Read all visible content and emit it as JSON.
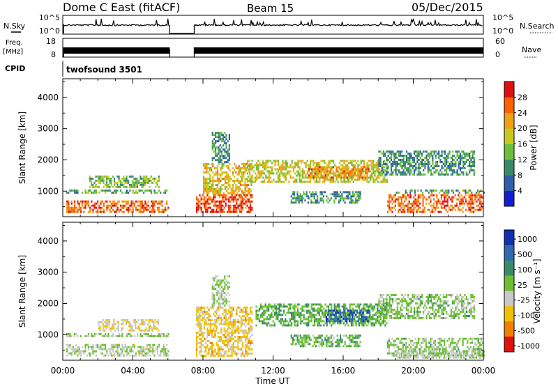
{
  "header": {
    "station": "Dome C East (fitACF)",
    "beam": "Beam 15",
    "date": "05/Dec/2015"
  },
  "nsky_panel": {
    "left_label": "N.Sky",
    "left_ticks": [
      "10^5",
      "10^0"
    ],
    "right_label": "N.Search",
    "right_ticks": [
      "10^5",
      "10^0"
    ]
  },
  "freq_panel": {
    "left_label_line1": "Freq.",
    "left_label_line2": "[MHz]",
    "left_ticks": [
      "18",
      "8"
    ],
    "right_label": "Nave",
    "right_ticks": [
      "60",
      "0"
    ]
  },
  "cpid": {
    "label": "CPID",
    "program": "twofsound 3501"
  },
  "time_axis": {
    "label": "Time UT",
    "ticks": [
      "00:00",
      "04:00",
      "08:00",
      "12:00",
      "16:00",
      "20:00",
      "00:00"
    ]
  },
  "chart_data": [
    {
      "type": "heatmap",
      "ylabel": "Slant Range [km]",
      "xlabel": "Time UT",
      "xlim": [
        0,
        24
      ],
      "ylim": [
        180,
        4600
      ],
      "y_ticks": [
        1000,
        2000,
        3000,
        4000
      ],
      "colorbar_label": "Power [dB]",
      "colorbar_ticks": [
        "28",
        "24",
        "20",
        "16",
        "12",
        "8",
        "4"
      ],
      "colorbar_range": [
        0,
        32
      ],
      "colors": [
        "#1020d0",
        "#2f5fa8",
        "#3a8a6a",
        "#6bbf3a",
        "#c8c820",
        "#f0a010",
        "#ff6000",
        "#e01010"
      ],
      "data_gap_hours": [
        6.1,
        7.5
      ],
      "echo_regions": [
        {
          "t": [
            0.2,
            6.0
          ],
          "r": [
            350,
            700
          ],
          "value": 26
        },
        {
          "t": [
            0.2,
            6.0
          ],
          "r": [
            950,
            1050
          ],
          "value": 12
        },
        {
          "t": [
            1.5,
            5.5
          ],
          "r": [
            1100,
            1500
          ],
          "value": 14
        },
        {
          "t": [
            7.6,
            10.8
          ],
          "r": [
            300,
            900
          ],
          "value": 28
        },
        {
          "t": [
            8.0,
            10.8
          ],
          "r": [
            900,
            1900
          ],
          "value": 20
        },
        {
          "t": [
            8.5,
            9.5
          ],
          "r": [
            1900,
            2900
          ],
          "value": 10
        },
        {
          "t": [
            10.5,
            18.5
          ],
          "r": [
            1300,
            2000
          ],
          "value": 18
        },
        {
          "t": [
            14.0,
            17.5
          ],
          "r": [
            1450,
            1800
          ],
          "value": 24
        },
        {
          "t": [
            13.0,
            17.0
          ],
          "r": [
            600,
            1000
          ],
          "value": 10
        },
        {
          "t": [
            18.5,
            24.0
          ],
          "r": [
            300,
            900
          ],
          "value": 26
        },
        {
          "t": [
            18.0,
            23.5
          ],
          "r": [
            1500,
            2300
          ],
          "value": 10
        },
        {
          "t": [
            19.0,
            24.0
          ],
          "r": [
            950,
            1050
          ],
          "value": 12
        }
      ]
    },
    {
      "type": "heatmap",
      "ylabel": "Slant Range [km]",
      "xlabel": "Time UT",
      "xlim": [
        0,
        24
      ],
      "ylim": [
        180,
        4600
      ],
      "y_ticks": [
        1000,
        2000,
        3000,
        4000
      ],
      "colorbar_label": "Velocity [m s⁻¹]",
      "colorbar_ticks": [
        "1000",
        "500",
        "100",
        "25",
        "-25",
        "-100",
        "-500",
        "-1000"
      ],
      "colorbar_range": [
        -1200,
        1200
      ],
      "colors": [
        "#1030b0",
        "#2f6ab0",
        "#3a8a6a",
        "#6cc030",
        "#c8c8c8",
        "#f0c000",
        "#f08000",
        "#e01010"
      ],
      "data_gap_hours": [
        6.1,
        7.5
      ],
      "echo_regions": [
        {
          "t": [
            0.2,
            6.0
          ],
          "r": [
            300,
            700
          ],
          "value": -60
        },
        {
          "t": [
            0.2,
            6.0
          ],
          "r": [
            950,
            1050
          ],
          "value": 0
        },
        {
          "t": [
            2.0,
            5.5
          ],
          "r": [
            1100,
            1500
          ],
          "value": -300
        },
        {
          "t": [
            7.6,
            10.8
          ],
          "r": [
            300,
            1900
          ],
          "value": -400
        },
        {
          "t": [
            8.5,
            9.5
          ],
          "r": [
            1900,
            2900
          ],
          "value": 0
        },
        {
          "t": [
            11.0,
            18.5
          ],
          "r": [
            1300,
            2000
          ],
          "value": 250
        },
        {
          "t": [
            15.0,
            17.5
          ],
          "r": [
            1450,
            1800
          ],
          "value": 800
        },
        {
          "t": [
            13.0,
            17.0
          ],
          "r": [
            600,
            1000
          ],
          "value": 200
        },
        {
          "t": [
            18.5,
            24.0
          ],
          "r": [
            300,
            900
          ],
          "value": 80
        },
        {
          "t": [
            19.0,
            24.0
          ],
          "r": [
            250,
            500
          ],
          "value": -60
        },
        {
          "t": [
            18.0,
            23.5
          ],
          "r": [
            1500,
            2300
          ],
          "value": 100
        }
      ]
    }
  ]
}
